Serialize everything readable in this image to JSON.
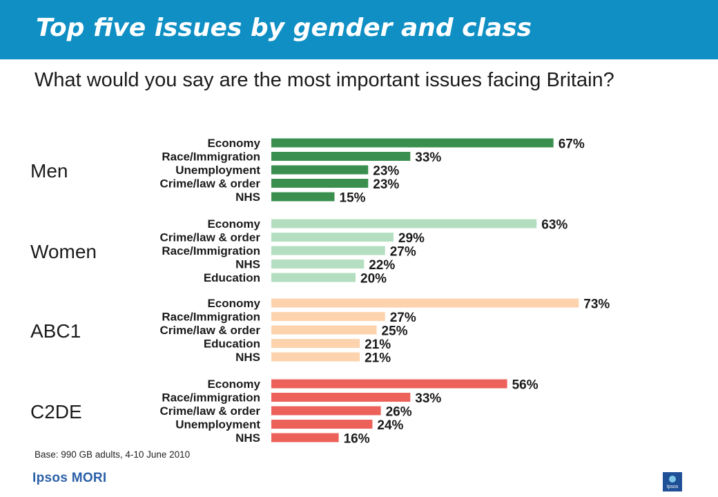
{
  "header": {
    "title": "Top five issues by gender and class",
    "subtitle": "What would you say are the most important issues facing Britain?"
  },
  "chart_data": {
    "type": "bar",
    "orientation": "horizontal",
    "value_suffix": "%",
    "xlim": [
      0,
      100
    ],
    "grid": false,
    "groups": [
      {
        "name": "Men",
        "color": "#3a8f4f",
        "categories": [
          "Economy",
          "Race/Immigration",
          "Unemployment",
          "Crime/law & order",
          "NHS"
        ],
        "values": [
          67,
          33,
          23,
          23,
          15
        ]
      },
      {
        "name": "Women",
        "color": "#b3dfc0",
        "categories": [
          "Economy",
          "Crime/law & order",
          "Race/Immigration",
          "NHS",
          "Education"
        ],
        "values": [
          63,
          29,
          27,
          22,
          20
        ]
      },
      {
        "name": "ABC1",
        "color": "#fdd3ad",
        "categories": [
          "Economy",
          "Race/Immigration",
          "Crime/law & order",
          "Education",
          "NHS"
        ],
        "values": [
          73,
          27,
          25,
          21,
          21
        ]
      },
      {
        "name": "C2DE",
        "color": "#ec6159",
        "categories": [
          "Economy",
          "Race/immigration",
          "Crime/law & order",
          "Unemployment",
          "NHS"
        ],
        "values": [
          56,
          33,
          26,
          24,
          16
        ]
      }
    ]
  },
  "footer": {
    "base_note": "Base: 990 GB adults, 4-10 June 2010",
    "logo": "Ipsos MORI",
    "badge": "Ipsos"
  }
}
